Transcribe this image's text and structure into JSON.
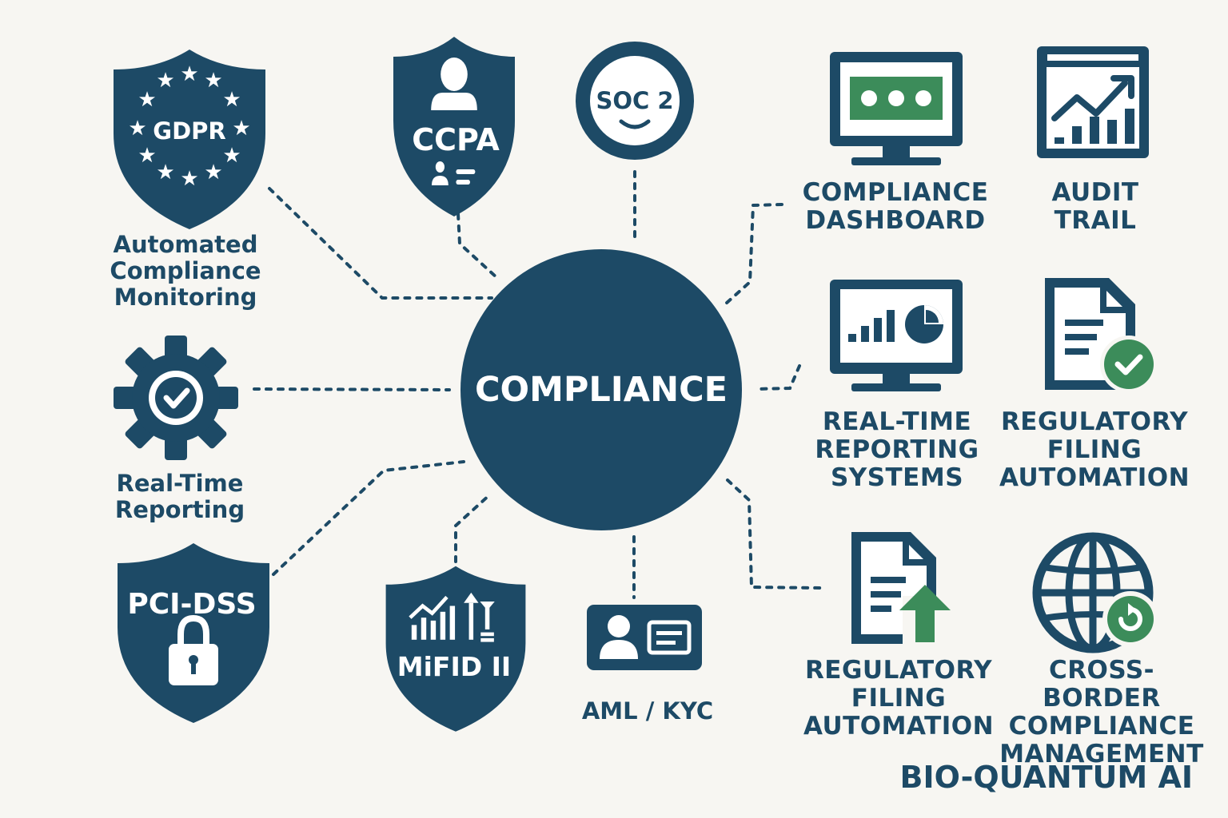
{
  "colors": {
    "navy": "#1d4a66",
    "green": "#3c8c5a",
    "background": "#f7f6f2",
    "white": "#ffffff"
  },
  "center": {
    "label": "COMPLIANCE"
  },
  "nodes": [
    {
      "id": "gdpr",
      "icon": "shield-eu-stars-icon",
      "badge": "GDPR",
      "label": "Automated\nCompliance\nMonitoring"
    },
    {
      "id": "ccpa",
      "icon": "shield-person-icon",
      "badge": "CCPA"
    },
    {
      "id": "soc2",
      "icon": "circle-smile-icon",
      "badge": "SOC 2"
    },
    {
      "id": "realtime",
      "icon": "gear-check-icon",
      "label": "Real-Time\nReporting"
    },
    {
      "id": "pci",
      "icon": "shield-padlock-icon",
      "badge": "PCI-DSS"
    },
    {
      "id": "mifid",
      "icon": "shield-chart-icon",
      "badge": "MiFID II"
    },
    {
      "id": "aml",
      "icon": "id-card-icon",
      "label": "AML / KYC"
    }
  ],
  "tiles": [
    {
      "id": "dashboard",
      "icon": "monitor-dots-icon",
      "label": "COMPLIANCE\nDASHBOARD"
    },
    {
      "id": "audit",
      "icon": "chart-trend-icon",
      "label": "AUDIT\nTRAIL"
    },
    {
      "id": "rtrs",
      "icon": "monitor-bar-pie-icon",
      "label": "REAL-TIME\nREPORTING\nSYSTEMS"
    },
    {
      "id": "rfa1",
      "icon": "document-check-icon",
      "label": "REGULATORY\nFILING\nAUTOMATION"
    },
    {
      "id": "rfa2",
      "icon": "document-upload-icon",
      "label": "REGULATORY\nFILING\nAUTOMATION"
    },
    {
      "id": "cross",
      "icon": "globe-refresh-icon",
      "label": "CROSS-BORDER\nCOMPLIANCE\nMANAGEMENT"
    }
  ],
  "brand": {
    "label": "BIO-QUANTUM AI"
  }
}
